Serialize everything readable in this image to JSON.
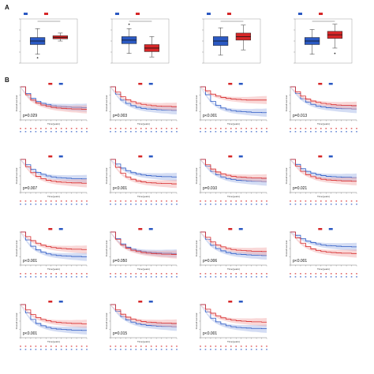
{
  "figure": {
    "panel_a_letter": "A",
    "panel_b_letter": "B"
  },
  "colors": {
    "wild": "#2b59c3",
    "mutation": "#d62728",
    "low": "#2b59c3",
    "high": "#d62728",
    "low_band": "#9fb3e6",
    "high_band": "#f2a8a8"
  },
  "chart_data": [
    {
      "type": "box",
      "panel": "A",
      "categories": [
        "Wild",
        "Mutation"
      ],
      "boxes": [
        {
          "q1": 0.42,
          "median": 0.5,
          "q3": 0.58,
          "min": 0.2,
          "max": 0.78,
          "outliers": [
            0.12
          ]
        },
        {
          "q1": 0.55,
          "median": 0.58,
          "q3": 0.62,
          "min": 0.5,
          "max": 0.68,
          "outliers": []
        }
      ],
      "ylim": [
        0,
        1
      ]
    },
    {
      "type": "box",
      "panel": "A",
      "categories": [
        "Wild",
        "Mutation"
      ],
      "boxes": [
        {
          "q1": 0.44,
          "median": 0.52,
          "q3": 0.6,
          "min": 0.22,
          "max": 0.78,
          "outliers": [
            0.88
          ]
        },
        {
          "q1": 0.26,
          "median": 0.34,
          "q3": 0.42,
          "min": 0.14,
          "max": 0.6,
          "outliers": []
        }
      ],
      "ylim": [
        0,
        1
      ]
    },
    {
      "type": "box",
      "panel": "A",
      "categories": [
        "Wild",
        "Mutation"
      ],
      "boxes": [
        {
          "q1": 0.4,
          "median": 0.5,
          "q3": 0.6,
          "min": 0.18,
          "max": 0.8,
          "outliers": []
        },
        {
          "q1": 0.52,
          "median": 0.6,
          "q3": 0.68,
          "min": 0.3,
          "max": 0.86,
          "outliers": []
        }
      ],
      "ylim": [
        0,
        1
      ]
    },
    {
      "type": "box",
      "panel": "A",
      "categories": [
        "Wild",
        "Mutation"
      ],
      "boxes": [
        {
          "q1": 0.42,
          "median": 0.5,
          "q3": 0.58,
          "min": 0.2,
          "max": 0.76,
          "outliers": []
        },
        {
          "q1": 0.56,
          "median": 0.64,
          "q3": 0.72,
          "min": 0.34,
          "max": 0.88,
          "outliers": [
            0.22
          ]
        }
      ],
      "ylim": [
        0,
        1
      ]
    },
    {
      "type": "line",
      "panel": "B",
      "pvalue": "p=0.029",
      "xlabel": "Time(years)",
      "ylabel": "Overall survival",
      "xlim": [
        0,
        13
      ],
      "ylim": [
        0,
        1
      ],
      "series": [
        {
          "values": [
            1,
            0.8,
            0.65,
            0.56,
            0.5,
            0.46,
            0.43,
            0.41,
            0.4,
            0.39,
            0.38,
            0.38,
            0.37,
            0.37
          ]
        },
        {
          "values": [
            1,
            0.76,
            0.6,
            0.51,
            0.45,
            0.41,
            0.38,
            0.36,
            0.35,
            0.34,
            0.33,
            0.33,
            0.32,
            0.32
          ]
        }
      ]
    },
    {
      "type": "line",
      "panel": "B",
      "pvalue": "p=0.003",
      "xlabel": "Time(years)",
      "ylabel": "Overall survival",
      "xlim": [
        0,
        13
      ],
      "ylim": [
        0,
        1
      ],
      "series": [
        {
          "values": [
            1,
            0.78,
            0.6,
            0.5,
            0.43,
            0.38,
            0.35,
            0.33,
            0.32,
            0.31,
            0.3,
            0.3,
            0.29,
            0.29
          ]
        },
        {
          "values": [
            1,
            0.84,
            0.7,
            0.61,
            0.55,
            0.5,
            0.47,
            0.45,
            0.43,
            0.42,
            0.41,
            0.41,
            0.4,
            0.4
          ]
        }
      ]
    },
    {
      "type": "line",
      "panel": "B",
      "pvalue": "p<0.001",
      "xlabel": "Time(years)",
      "ylabel": "Overall survival",
      "xlim": [
        0,
        13
      ],
      "ylim": [
        0,
        1
      ],
      "series": [
        {
          "values": [
            1,
            0.76,
            0.56,
            0.44,
            0.36,
            0.31,
            0.28,
            0.26,
            0.25,
            0.24,
            0.23,
            0.23,
            0.22,
            0.22
          ]
        },
        {
          "values": [
            1,
            0.88,
            0.78,
            0.72,
            0.68,
            0.65,
            0.63,
            0.62,
            0.61,
            0.6,
            0.6,
            0.6,
            0.6,
            0.6
          ]
        }
      ]
    },
    {
      "type": "line",
      "panel": "B",
      "pvalue": "p=0.013",
      "xlabel": "Time(years)",
      "ylabel": "Overall survival",
      "xlim": [
        0,
        13
      ],
      "ylim": [
        0,
        1
      ],
      "series": [
        {
          "values": [
            1,
            0.8,
            0.64,
            0.54,
            0.47,
            0.42,
            0.39,
            0.37,
            0.36,
            0.35,
            0.34,
            0.34,
            0.33,
            0.33
          ]
        },
        {
          "values": [
            1,
            0.85,
            0.72,
            0.63,
            0.57,
            0.53,
            0.5,
            0.48,
            0.46,
            0.45,
            0.44,
            0.44,
            0.43,
            0.43
          ]
        }
      ]
    },
    {
      "type": "line",
      "panel": "B",
      "pvalue": "p=0.007",
      "xlabel": "Time(years)",
      "ylabel": "Overall survival",
      "xlim": [
        0,
        13
      ],
      "ylim": [
        0,
        1
      ],
      "series": [
        {
          "values": [
            1,
            0.84,
            0.7,
            0.61,
            0.55,
            0.5,
            0.47,
            0.45,
            0.44,
            0.43,
            0.42,
            0.42,
            0.41,
            0.41
          ]
        },
        {
          "values": [
            1,
            0.78,
            0.6,
            0.49,
            0.42,
            0.37,
            0.34,
            0.32,
            0.31,
            0.3,
            0.29,
            0.29,
            0.28,
            0.28
          ]
        }
      ]
    },
    {
      "type": "line",
      "panel": "B",
      "pvalue": "p<0.001",
      "xlabel": "Time(years)",
      "ylabel": "Overall survival",
      "xlim": [
        0,
        13
      ],
      "ylim": [
        0,
        1
      ],
      "series": [
        {
          "values": [
            1,
            0.86,
            0.74,
            0.66,
            0.6,
            0.56,
            0.53,
            0.51,
            0.5,
            0.49,
            0.48,
            0.48,
            0.47,
            0.47
          ]
        },
        {
          "values": [
            1,
            0.76,
            0.58,
            0.47,
            0.4,
            0.35,
            0.32,
            0.3,
            0.29,
            0.28,
            0.27,
            0.27,
            0.26,
            0.26
          ]
        }
      ]
    },
    {
      "type": "line",
      "panel": "B",
      "pvalue": "p=0.010",
      "xlabel": "Time(years)",
      "ylabel": "Overall survival",
      "xlim": [
        0,
        13
      ],
      "ylim": [
        0,
        1
      ],
      "series": [
        {
          "values": [
            1,
            0.8,
            0.64,
            0.54,
            0.47,
            0.42,
            0.39,
            0.37,
            0.36,
            0.35,
            0.34,
            0.34,
            0.33,
            0.33
          ]
        },
        {
          "values": [
            1,
            0.84,
            0.71,
            0.62,
            0.56,
            0.52,
            0.49,
            0.47,
            0.46,
            0.45,
            0.44,
            0.44,
            0.43,
            0.43
          ]
        }
      ]
    },
    {
      "type": "line",
      "panel": "B",
      "pvalue": "p=0.021",
      "xlabel": "Time(years)",
      "ylabel": "Overall survival",
      "xlim": [
        0,
        13
      ],
      "ylim": [
        0,
        1
      ],
      "series": [
        {
          "values": [
            1,
            0.85,
            0.72,
            0.64,
            0.58,
            0.54,
            0.51,
            0.49,
            0.48,
            0.47,
            0.46,
            0.46,
            0.45,
            0.45
          ]
        },
        {
          "values": [
            1,
            0.8,
            0.64,
            0.54,
            0.48,
            0.43,
            0.4,
            0.38,
            0.37,
            0.36,
            0.35,
            0.35,
            0.34,
            0.34
          ]
        }
      ]
    },
    {
      "type": "line",
      "panel": "B",
      "pvalue": "p<0.001",
      "xlabel": "Time(years)",
      "ylabel": "Overall survival",
      "xlim": [
        0,
        13
      ],
      "ylim": [
        0,
        1
      ],
      "series": [
        {
          "values": [
            1,
            0.76,
            0.57,
            0.46,
            0.39,
            0.34,
            0.31,
            0.29,
            0.28,
            0.27,
            0.26,
            0.26,
            0.25,
            0.25
          ]
        },
        {
          "values": [
            1,
            0.86,
            0.74,
            0.66,
            0.6,
            0.56,
            0.53,
            0.51,
            0.5,
            0.49,
            0.48,
            0.48,
            0.47,
            0.47
          ]
        }
      ]
    },
    {
      "type": "line",
      "panel": "B",
      "pvalue": "p=0.050",
      "xlabel": "Time(years)",
      "ylabel": "Overall survival",
      "xlim": [
        0,
        13
      ],
      "ylim": [
        0,
        1
      ],
      "series": [
        {
          "values": [
            1,
            0.8,
            0.64,
            0.54,
            0.48,
            0.44,
            0.41,
            0.39,
            0.38,
            0.37,
            0.36,
            0.36,
            0.35,
            0.35
          ]
        },
        {
          "values": [
            1,
            0.78,
            0.61,
            0.51,
            0.45,
            0.41,
            0.38,
            0.36,
            0.35,
            0.34,
            0.33,
            0.33,
            0.32,
            0.32
          ]
        }
      ]
    },
    {
      "type": "line",
      "panel": "B",
      "pvalue": "p=0.006",
      "xlabel": "Time(years)",
      "ylabel": "Overall survival",
      "xlim": [
        0,
        13
      ],
      "ylim": [
        0,
        1
      ],
      "series": [
        {
          "values": [
            1,
            0.78,
            0.6,
            0.5,
            0.43,
            0.38,
            0.35,
            0.33,
            0.32,
            0.31,
            0.3,
            0.3,
            0.29,
            0.29
          ]
        },
        {
          "values": [
            1,
            0.84,
            0.7,
            0.61,
            0.55,
            0.5,
            0.47,
            0.45,
            0.44,
            0.43,
            0.42,
            0.42,
            0.41,
            0.41
          ]
        }
      ]
    },
    {
      "type": "line",
      "panel": "B",
      "pvalue": "p<0.001",
      "xlabel": "Time(years)",
      "ylabel": "Overall survival",
      "xlim": [
        0,
        13
      ],
      "ylim": [
        0,
        1
      ],
      "series": [
        {
          "values": [
            1,
            0.9,
            0.8,
            0.73,
            0.68,
            0.64,
            0.61,
            0.59,
            0.58,
            0.57,
            0.56,
            0.56,
            0.55,
            0.55
          ]
        },
        {
          "values": [
            1,
            0.82,
            0.66,
            0.56,
            0.49,
            0.44,
            0.41,
            0.39,
            0.38,
            0.37,
            0.36,
            0.36,
            0.35,
            0.35
          ]
        }
      ]
    },
    {
      "type": "line",
      "panel": "B",
      "pvalue": "p<0.001",
      "xlabel": "Time(years)",
      "ylabel": "Overall survival",
      "xlim": [
        0,
        13
      ],
      "ylim": [
        0,
        1
      ],
      "series": [
        {
          "values": [
            1,
            0.75,
            0.55,
            0.43,
            0.36,
            0.31,
            0.28,
            0.26,
            0.25,
            0.24,
            0.23,
            0.23,
            0.22,
            0.22
          ]
        },
        {
          "values": [
            1,
            0.84,
            0.7,
            0.61,
            0.55,
            0.51,
            0.48,
            0.46,
            0.45,
            0.44,
            0.43,
            0.43,
            0.42,
            0.42
          ]
        }
      ]
    },
    {
      "type": "line",
      "panel": "B",
      "pvalue": "p=0.015",
      "xlabel": "Time(years)",
      "ylabel": "Overall survival",
      "xlim": [
        0,
        13
      ],
      "ylim": [
        0,
        1
      ],
      "series": [
        {
          "values": [
            1,
            0.8,
            0.64,
            0.54,
            0.47,
            0.42,
            0.39,
            0.37,
            0.36,
            0.35,
            0.34,
            0.34,
            0.33,
            0.33
          ]
        },
        {
          "values": [
            1,
            0.84,
            0.71,
            0.62,
            0.56,
            0.52,
            0.49,
            0.47,
            0.46,
            0.45,
            0.44,
            0.44,
            0.43,
            0.43
          ]
        }
      ]
    },
    {
      "type": "line",
      "panel": "B",
      "pvalue": "p<0.001",
      "xlabel": "Time(years)",
      "ylabel": "Overall survival",
      "xlim": [
        0,
        13
      ],
      "ylim": [
        0,
        1
      ],
      "series": [
        {
          "values": [
            1,
            0.78,
            0.59,
            0.48,
            0.41,
            0.36,
            0.33,
            0.31,
            0.3,
            0.29,
            0.28,
            0.28,
            0.27,
            0.27
          ]
        },
        {
          "values": [
            1,
            0.86,
            0.74,
            0.66,
            0.6,
            0.56,
            0.53,
            0.51,
            0.5,
            0.49,
            0.48,
            0.48,
            0.47,
            0.47
          ]
        }
      ]
    }
  ]
}
